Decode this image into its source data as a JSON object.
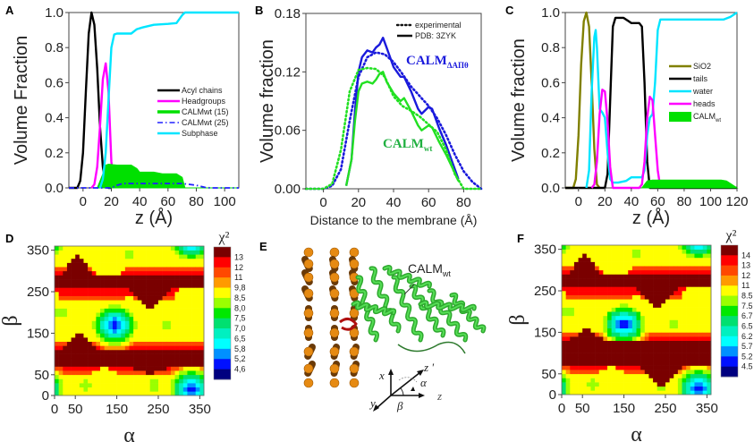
{
  "chart_data": [
    {
      "panel": "A",
      "type": "line",
      "xlabel": "z (Å)",
      "ylabel": "Volume Fraction",
      "xlim": [
        -10,
        110
      ],
      "ylim": [
        0,
        1.0
      ],
      "xticks": [
        0,
        20,
        40,
        60,
        80,
        100
      ],
      "yticks": [
        "0.0",
        "0.2",
        "0.4",
        "0.6",
        "0.8",
        "1.0"
      ],
      "legend_position": "center-right",
      "series": [
        {
          "name": "Acyl chains",
          "color": "#000000",
          "style": "solid",
          "x": [
            -10,
            -4,
            -2,
            0,
            2,
            4,
            6,
            8,
            10,
            12,
            14,
            16,
            18,
            20
          ],
          "y": [
            0,
            0,
            0.04,
            0.2,
            0.55,
            0.88,
            1.0,
            0.93,
            0.68,
            0.35,
            0.12,
            0.02,
            0,
            0
          ]
        },
        {
          "name": "Headgroups",
          "color": "#ff00ff",
          "style": "solid",
          "x": [
            6,
            8,
            10,
            12,
            14,
            16,
            18,
            20,
            22
          ],
          "y": [
            0,
            0.02,
            0.12,
            0.35,
            0.62,
            0.71,
            0.55,
            0.15,
            0
          ]
        },
        {
          "name": "CALMwt (15)",
          "color": "#00e000",
          "style": "filled",
          "x": [
            10,
            14,
            16,
            18,
            24,
            34,
            38,
            40,
            50,
            56,
            66,
            70,
            72,
            110
          ],
          "y": [
            0,
            0.08,
            0.13,
            0.135,
            0.13,
            0.13,
            0.11,
            0.09,
            0.09,
            0.08,
            0.08,
            0.06,
            0,
            0
          ]
        },
        {
          "name": "CALMwt (25)",
          "color": "#2020ff",
          "style": "dashdot",
          "x": [
            -10,
            20,
            24,
            28,
            60,
            70,
            80,
            86,
            90,
            110
          ],
          "y": [
            0,
            0,
            0.015,
            0.025,
            0.025,
            0.025,
            0.015,
            0.003,
            0,
            0
          ]
        },
        {
          "name": "Subphase",
          "color": "#00e5ff",
          "style": "solid",
          "x": [
            12,
            14,
            16,
            18,
            20,
            22,
            24,
            30,
            34,
            38,
            42,
            50,
            60,
            66,
            70,
            72,
            80,
            110
          ],
          "y": [
            0,
            0.05,
            0.2,
            0.5,
            0.8,
            0.875,
            0.88,
            0.88,
            0.88,
            0.905,
            0.915,
            0.93,
            0.935,
            0.94,
            0.985,
            1.0,
            1.0,
            1.0
          ]
        }
      ]
    },
    {
      "panel": "B",
      "type": "line",
      "xlabel": "Distance to the membrane (Å)",
      "ylabel": "Volume fraction",
      "xlim": [
        -10,
        90
      ],
      "ylim": [
        0,
        0.18
      ],
      "xticks": [
        0,
        20,
        40,
        60,
        80
      ],
      "yticks": [
        "0.00",
        "0.06",
        "0.12",
        "0.18"
      ],
      "legend_position": "top-right",
      "legend": [
        {
          "name": "experimental",
          "style": "dotted"
        },
        {
          "name": "PDB: 3ZYK",
          "style": "solid"
        }
      ],
      "annotations": [
        {
          "text": "CALM",
          "sub": "ΔAΠθ",
          "color": "#1a1adc"
        },
        {
          "text": "CALM",
          "sub": "wt",
          "color": "#20b040"
        }
      ],
      "series": [
        {
          "name": "CALM ΔAΠθ PDB: 3ZYK",
          "color": "#1a1adc",
          "style": "solid",
          "x": [
            13,
            16,
            18,
            20,
            22,
            25,
            28,
            30,
            32,
            34,
            36,
            40,
            44,
            46,
            50,
            54,
            56,
            60,
            62,
            66,
            70,
            74,
            77
          ],
          "y": [
            0.003,
            0.03,
            0.08,
            0.12,
            0.135,
            0.142,
            0.14,
            0.145,
            0.148,
            0.155,
            0.145,
            0.125,
            0.115,
            0.115,
            0.1,
            0.082,
            0.077,
            0.084,
            0.082,
            0.062,
            0.045,
            0.025,
            0.01
          ]
        },
        {
          "name": "CALM ΔAΠθ experimental",
          "color": "#1a1adc",
          "style": "dotted",
          "x": [
            -10,
            0,
            5,
            10,
            15,
            20,
            25,
            30,
            35,
            40,
            45,
            50,
            55,
            60,
            65,
            70,
            75,
            80,
            85,
            90
          ],
          "y": [
            0,
            0,
            0.003,
            0.02,
            0.07,
            0.115,
            0.135,
            0.14,
            0.138,
            0.13,
            0.118,
            0.105,
            0.095,
            0.085,
            0.072,
            0.055,
            0.035,
            0.018,
            0.007,
            0
          ]
        },
        {
          "name": "CALM wt PDB: 3ZYK",
          "color": "#22e022",
          "style": "solid",
          "x": [
            13,
            16,
            18,
            20,
            22,
            25,
            28,
            30,
            32,
            34,
            36,
            40,
            44,
            46,
            50,
            54,
            56,
            60,
            62,
            66,
            70,
            74,
            77
          ],
          "y": [
            0.003,
            0.03,
            0.07,
            0.1,
            0.108,
            0.11,
            0.108,
            0.112,
            0.118,
            0.12,
            0.11,
            0.098,
            0.09,
            0.093,
            0.08,
            0.065,
            0.06,
            0.065,
            0.063,
            0.048,
            0.035,
            0.02,
            0.008
          ]
        },
        {
          "name": "CALM wt experimental",
          "color": "#22e022",
          "style": "dotted",
          "x": [
            -10,
            0,
            5,
            10,
            15,
            20,
            25,
            30,
            35,
            40,
            45,
            50,
            55,
            60,
            65,
            70,
            75,
            80,
            90
          ],
          "y": [
            0,
            0,
            0.005,
            0.04,
            0.1,
            0.122,
            0.124,
            0.123,
            0.115,
            0.095,
            0.085,
            0.08,
            0.074,
            0.066,
            0.058,
            0.04,
            0.015,
            0,
            0
          ]
        }
      ]
    },
    {
      "panel": "C",
      "type": "line",
      "xlabel": "z (Å)",
      "ylabel": "Volume fraction",
      "xlim": [
        -10,
        120
      ],
      "ylim": [
        0,
        1.0
      ],
      "xticks": [
        0,
        20,
        40,
        60,
        80,
        100,
        120
      ],
      "yticks": [
        "0.0",
        "0.2",
        "0.4",
        "0.6",
        "0.8",
        "1.0"
      ],
      "legend_position": "center-right",
      "series": [
        {
          "name": "SiO2",
          "color": "#808000",
          "style": "solid",
          "x": [
            -10,
            -4,
            -2,
            0,
            2,
            4,
            6,
            8,
            10,
            12,
            14,
            16
          ],
          "y": [
            0,
            0,
            0.05,
            0.3,
            0.7,
            0.95,
            1.0,
            0.92,
            0.6,
            0.22,
            0.02,
            0
          ]
        },
        {
          "name": "tails",
          "color": "#000000",
          "style": "solid",
          "x": [
            -10,
            20,
            22,
            24,
            26,
            28,
            34,
            38,
            40,
            44,
            46,
            48,
            50,
            52,
            54,
            120
          ],
          "y": [
            0,
            0,
            0.08,
            0.5,
            0.92,
            0.97,
            0.97,
            0.95,
            0.94,
            0.94,
            0.94,
            0.92,
            0.6,
            0.15,
            0,
            0
          ]
        },
        {
          "name": "water",
          "color": "#00e5ff",
          "style": "solid",
          "x": [
            6,
            8,
            10,
            12,
            13,
            14,
            16,
            18,
            20,
            22,
            24,
            26,
            30,
            36,
            40,
            48,
            50,
            52,
            54,
            56,
            58,
            60,
            62,
            66,
            70,
            80,
            100,
            110,
            115,
            120
          ],
          "y": [
            0,
            0.1,
            0.55,
            0.86,
            0.9,
            0.8,
            0.45,
            0.43,
            0.4,
            0.2,
            0.05,
            0.03,
            0.03,
            0.04,
            0.06,
            0.06,
            0.1,
            0.3,
            0.4,
            0.42,
            0.6,
            0.9,
            0.96,
            0.96,
            0.96,
            0.96,
            0.96,
            0.96,
            0.975,
            1.0
          ]
        },
        {
          "name": "heads",
          "color": "#ff00ff",
          "style": "solid",
          "x": [
            10,
            12,
            14,
            16,
            18,
            20,
            22,
            24,
            26,
            46,
            48,
            50,
            52,
            54,
            56,
            58,
            60,
            62
          ],
          "y": [
            0,
            0.02,
            0.15,
            0.42,
            0.56,
            0.55,
            0.38,
            0.12,
            0,
            0,
            0.02,
            0.15,
            0.4,
            0.52,
            0.5,
            0.3,
            0.1,
            0
          ]
        },
        {
          "name": "CALMwt",
          "color": "#00e000",
          "style": "filled",
          "x": [
            48,
            52,
            56,
            60,
            80,
            100,
            108,
            112,
            116,
            120
          ],
          "y": [
            0,
            0.04,
            0.045,
            0.045,
            0.045,
            0.045,
            0.045,
            0.04,
            0.02,
            0
          ]
        }
      ]
    },
    {
      "panel": "D",
      "type": "heatmap",
      "xlabel": "α",
      "ylabel": "β",
      "xlim": [
        0,
        360
      ],
      "ylim": [
        0,
        360
      ],
      "xticks": [
        0,
        50,
        150,
        250,
        350
      ],
      "yticks": [
        0,
        50,
        150,
        250,
        350
      ],
      "colorbar_title": "χ²",
      "colorbar_labels": [
        "13",
        "12",
        "11",
        "9,8",
        "8,5",
        "8,0",
        "7,5",
        "7,0",
        "6,5",
        "5,8",
        "5,2",
        "4,6"
      ],
      "colorbar_colors": [
        "#7a0000",
        "#ff0000",
        "#ff4800",
        "#ff9a00",
        "#ffff00",
        "#9aff00",
        "#00e800",
        "#00e070",
        "#00f0c0",
        "#00ffff",
        "#0090ff",
        "#0010ff",
        "#000080"
      ],
      "minima": [
        {
          "alpha": 145,
          "beta": 170
        },
        {
          "alpha": 330,
          "beta": 15
        }
      ]
    },
    {
      "panel": "F",
      "type": "heatmap",
      "xlabel": "α",
      "ylabel": "β",
      "xlim": [
        0,
        360
      ],
      "ylim": [
        0,
        360
      ],
      "xticks": [
        0,
        50,
        150,
        250,
        350
      ],
      "yticks": [
        0,
        50,
        150,
        250,
        350
      ],
      "colorbar_title": "χ²",
      "colorbar_labels": [
        "14",
        "13",
        "12",
        "11",
        "8.5",
        "7.5",
        "6.7",
        "6.5",
        "6.2",
        "5.7",
        "5.2",
        "4.5"
      ],
      "colorbar_colors": [
        "#7a0000",
        "#ff0000",
        "#ff4800",
        "#ff9a00",
        "#ffff00",
        "#9aff00",
        "#00e800",
        "#00e070",
        "#00f0c0",
        "#00ffff",
        "#0090ff",
        "#0010ff",
        "#000080"
      ],
      "minima": [
        {
          "alpha": 150,
          "beta": 170
        },
        {
          "alpha": 330,
          "beta": 15
        }
      ]
    }
  ],
  "panels": {
    "A": "A",
    "B": "B",
    "C": "C",
    "D": "D",
    "E": "E",
    "F": "F"
  },
  "panelE": {
    "label_main": "CALM",
    "label_sub": "wt",
    "axis_x": "x",
    "axis_y": "y",
    "axis_z": "z",
    "axis_zp": "z '",
    "angle_alpha": "α",
    "angle_beta": "β",
    "protein_color": "#22b022",
    "lipid_color": "#e08a10"
  }
}
